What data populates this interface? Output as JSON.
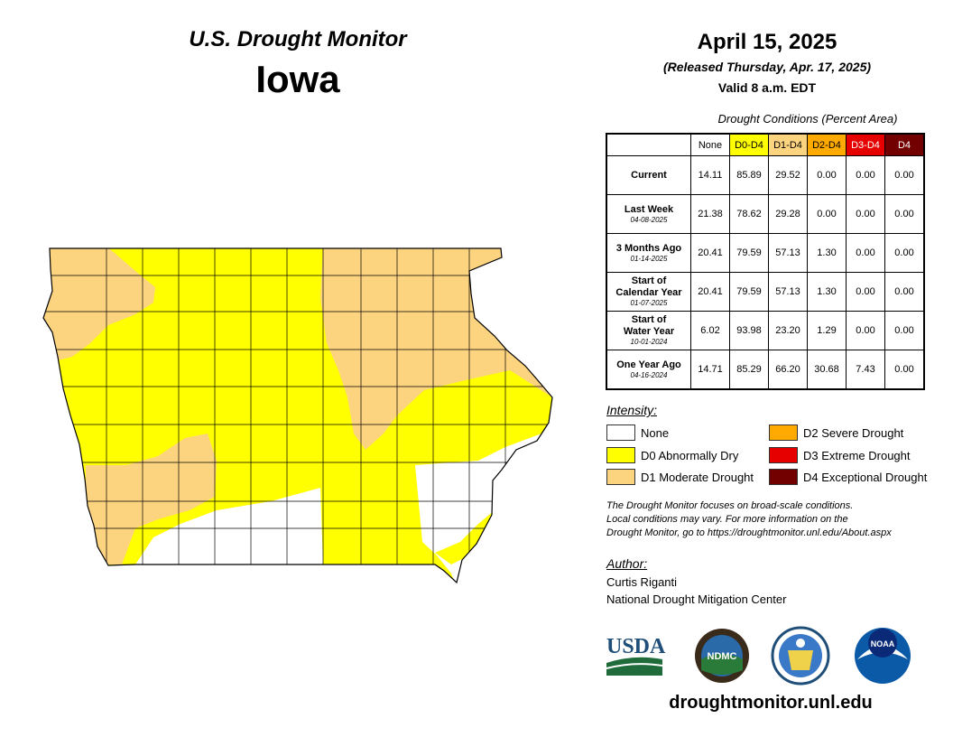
{
  "header": {
    "product": "U.S. Drought Monitor",
    "state": "Iowa",
    "date": "April 15, 2025",
    "released": "(Released Thursday, Apr. 17, 2025)",
    "valid": "Valid 8 a.m. EDT"
  },
  "table": {
    "caption": "Drought Conditions (Percent Area)",
    "columns": [
      {
        "label": "None",
        "color": "#ffffff",
        "text_color": "#000000"
      },
      {
        "label": "D0-D4",
        "color": "#ffff00",
        "text_color": "#000000"
      },
      {
        "label": "D1-D4",
        "color": "#fcd37f",
        "text_color": "#000000"
      },
      {
        "label": "D2-D4",
        "color": "#ffaa00",
        "text_color": "#000000"
      },
      {
        "label": "D3-D4",
        "color": "#e60000",
        "text_color": "#ffffff"
      },
      {
        "label": "D4",
        "color": "#730000",
        "text_color": "#ffffff"
      }
    ],
    "rows": [
      {
        "label": "Current",
        "label2": "",
        "date": "",
        "values": [
          "14.11",
          "85.89",
          "29.52",
          "0.00",
          "0.00",
          "0.00"
        ]
      },
      {
        "label": "Last Week",
        "label2": "",
        "date": "04-08-2025",
        "values": [
          "21.38",
          "78.62",
          "29.28",
          "0.00",
          "0.00",
          "0.00"
        ]
      },
      {
        "label": "3 Months Ago",
        "label2": "",
        "date": "01-14-2025",
        "values": [
          "20.41",
          "79.59",
          "57.13",
          "1.30",
          "0.00",
          "0.00"
        ]
      },
      {
        "label": "Start of",
        "label2": "Calendar Year",
        "date": "01-07-2025",
        "values": [
          "20.41",
          "79.59",
          "57.13",
          "1.30",
          "0.00",
          "0.00"
        ]
      },
      {
        "label": "Start of",
        "label2": "Water Year",
        "date": "10-01-2024",
        "values": [
          "6.02",
          "93.98",
          "23.20",
          "1.29",
          "0.00",
          "0.00"
        ]
      },
      {
        "label": "One Year Ago",
        "label2": "",
        "date": "04-16-2024",
        "values": [
          "14.71",
          "85.29",
          "66.20",
          "30.68",
          "7.43",
          "0.00"
        ]
      }
    ]
  },
  "legend": {
    "title": "Intensity:",
    "items": [
      {
        "label": "None",
        "color": "#ffffff"
      },
      {
        "label": "D0 Abnormally Dry",
        "color": "#ffff00"
      },
      {
        "label": "D1 Moderate Drought",
        "color": "#fcd37f"
      },
      {
        "label": "D2 Severe Drought",
        "color": "#ffaa00"
      },
      {
        "label": "D3 Extreme Drought",
        "color": "#e60000"
      },
      {
        "label": "D4 Exceptional Drought",
        "color": "#730000"
      }
    ]
  },
  "note": {
    "line1": "The Drought Monitor focuses on broad-scale conditions.",
    "line2": "Local conditions may vary. For more information on the",
    "line3": "Drought Monitor, go to https://droughtmonitor.unl.edu/About.aspx"
  },
  "author": {
    "label": "Author:",
    "name": "Curtis Riganti",
    "org": "National Drought Mitigation Center"
  },
  "logos": {
    "usda": "USDA",
    "ndmc": "NDMC",
    "noaa": "NOAA"
  },
  "website": "droughtmonitor.unl.edu",
  "map": {
    "colors": {
      "d0": "#ffff00",
      "d1": "#fcd37f",
      "none": "#ffffff",
      "border": "#000000"
    }
  }
}
